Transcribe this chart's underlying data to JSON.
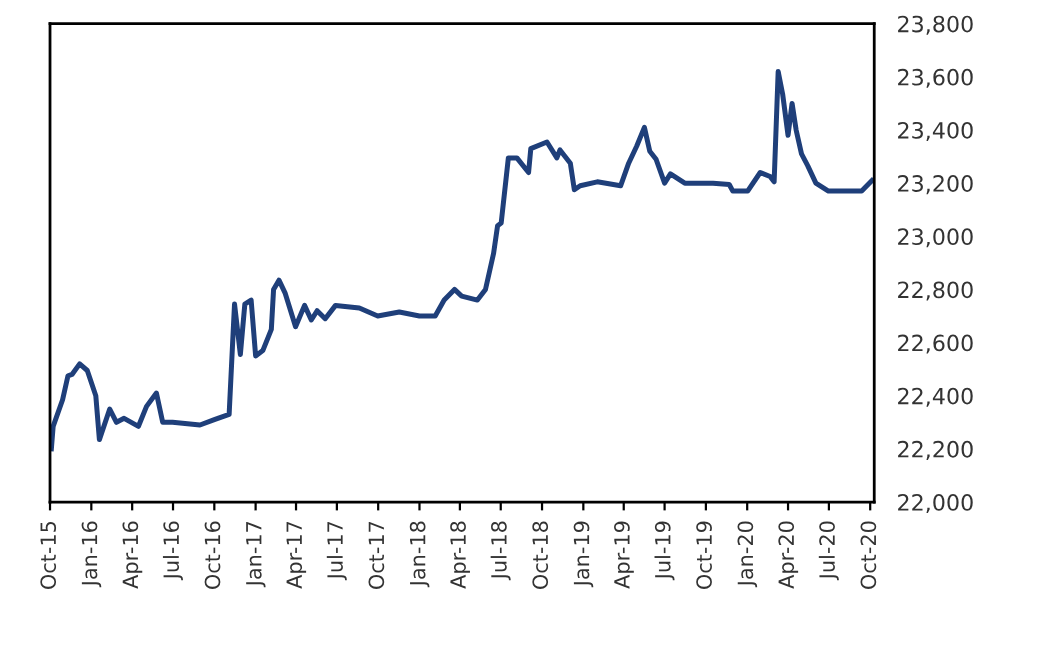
{
  "chart_data": {
    "type": "line",
    "grid": false,
    "legend": false,
    "marker": "none",
    "line_style": "solid",
    "x": [
      "2015-10-04",
      "2015-10-08",
      "2015-10-29",
      "2015-11-10",
      "2015-11-19",
      "2015-12-06",
      "2015-12-23",
      "2016-01-11",
      "2016-01-19",
      "2016-02-11",
      "2016-02-26",
      "2016-03-14",
      "2016-04-15",
      "2016-05-03",
      "2016-05-25",
      "2016-06-08",
      "2016-06-30",
      "2016-08-30",
      "2016-10-01",
      "2016-11-03",
      "2016-11-15",
      "2016-11-28",
      "2016-12-08",
      "2016-12-22",
      "2017-01-01",
      "2017-01-17",
      "2017-02-05",
      "2017-02-10",
      "2017-02-22",
      "2017-03-08",
      "2017-03-31",
      "2017-04-20",
      "2017-05-05",
      "2017-05-18",
      "2017-06-05",
      "2017-06-28",
      "2017-08-20",
      "2017-09-30",
      "2017-11-17",
      "2018-01-01",
      "2018-02-05",
      "2018-02-25",
      "2018-03-20",
      "2018-04-05",
      "2018-05-10",
      "2018-05-28",
      "2018-06-15",
      "2018-06-24",
      "2018-07-02",
      "2018-07-18",
      "2018-08-06",
      "2018-09-01",
      "2018-09-06",
      "2018-10-12",
      "2018-11-03",
      "2018-11-10",
      "2018-12-03",
      "2018-12-12",
      "2018-12-25",
      "2019-02-01",
      "2019-03-25",
      "2019-04-12",
      "2019-04-30",
      "2019-05-17",
      "2019-05-29",
      "2019-06-12",
      "2019-07-01",
      "2019-07-14",
      "2019-08-15",
      "2019-10-17",
      "2019-11-22",
      "2019-11-30",
      "2020-01-02",
      "2020-01-30",
      "2020-02-21",
      "2020-03-01",
      "2020-03-10",
      "2020-03-20",
      "2020-04-01",
      "2020-04-10",
      "2020-04-19",
      "2020-05-01",
      "2020-05-15",
      "2020-06-02",
      "2020-06-30",
      "2020-09-12",
      "2020-10-05"
    ],
    "series": [
      {
        "color": "#1f3f7a",
        "values": [
          22200,
          22285,
          22385,
          22475,
          22480,
          22520,
          22495,
          22400,
          22235,
          22350,
          22300,
          22315,
          22285,
          22360,
          22410,
          22300,
          22300,
          22290,
          22310,
          22330,
          22745,
          22555,
          22745,
          22760,
          22550,
          22570,
          22650,
          22800,
          22835,
          22785,
          22660,
          22740,
          22685,
          22720,
          22690,
          22740,
          22730,
          22700,
          22715,
          22700,
          22700,
          22760,
          22800,
          22775,
          22760,
          22800,
          22935,
          23040,
          23050,
          23295,
          23295,
          23240,
          23330,
          23355,
          23295,
          23325,
          23275,
          23175,
          23190,
          23205,
          23190,
          23275,
          23340,
          23410,
          23320,
          23290,
          23200,
          23235,
          23200,
          23200,
          23195,
          23170,
          23170,
          23240,
          23225,
          23205,
          23620,
          23535,
          23380,
          23500,
          23400,
          23310,
          23265,
          23200,
          23170,
          23170,
          23210
        ]
      }
    ],
    "xlim": [
      "2015-10-01",
      "2020-10-10"
    ],
    "xticks": [
      {
        "value": "2015-10-01",
        "label": "Oct-15"
      },
      {
        "value": "2016-01-01",
        "label": "Jan-16"
      },
      {
        "value": "2016-04-01",
        "label": "Apr-16"
      },
      {
        "value": "2016-07-01",
        "label": "Jul-16"
      },
      {
        "value": "2016-10-01",
        "label": "Oct-16"
      },
      {
        "value": "2017-01-01",
        "label": "Jan-17"
      },
      {
        "value": "2017-04-01",
        "label": "Apr-17"
      },
      {
        "value": "2017-07-01",
        "label": "Jul-17"
      },
      {
        "value": "2017-10-01",
        "label": "Oct-17"
      },
      {
        "value": "2018-01-01",
        "label": "Jan-18"
      },
      {
        "value": "2018-04-01",
        "label": "Apr-18"
      },
      {
        "value": "2018-07-01",
        "label": "Jul-18"
      },
      {
        "value": "2018-10-01",
        "label": "Oct-18"
      },
      {
        "value": "2019-01-01",
        "label": "Jan-19"
      },
      {
        "value": "2019-04-01",
        "label": "Apr-19"
      },
      {
        "value": "2019-07-01",
        "label": "Jul-19"
      },
      {
        "value": "2019-10-01",
        "label": "Oct-19"
      },
      {
        "value": "2020-01-01",
        "label": "Jan-20"
      },
      {
        "value": "2020-04-01",
        "label": "Apr-20"
      },
      {
        "value": "2020-07-01",
        "label": "Jul-20"
      },
      {
        "value": "2020-10-01",
        "label": "Oct-20"
      }
    ],
    "ylim": [
      22000,
      23800
    ],
    "yticks": [
      {
        "value": 22000,
        "label": "22,000"
      },
      {
        "value": 22200,
        "label": "22,200"
      },
      {
        "value": 22400,
        "label": "22,400"
      },
      {
        "value": 22600,
        "label": "22,600"
      },
      {
        "value": 22800,
        "label": "22,800"
      },
      {
        "value": 23000,
        "label": "23,000"
      },
      {
        "value": 23200,
        "label": "23,200"
      },
      {
        "value": 23400,
        "label": "23,400"
      },
      {
        "value": 23600,
        "label": "23,600"
      },
      {
        "value": 23800,
        "label": "23,800"
      }
    ]
  }
}
